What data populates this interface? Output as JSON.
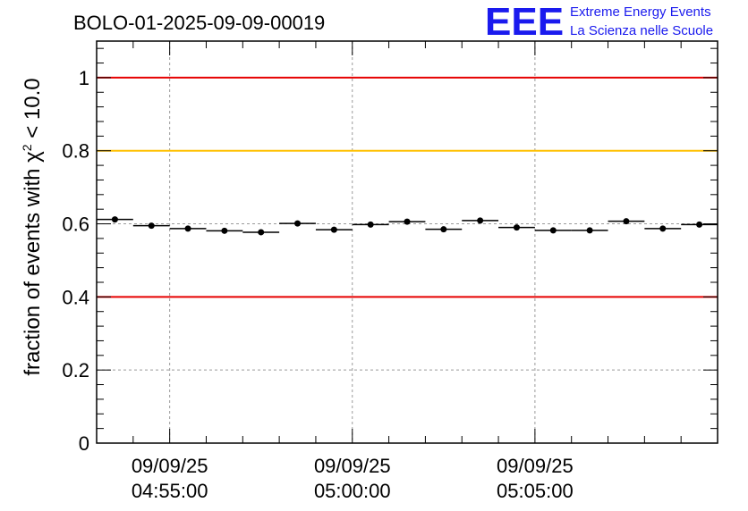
{
  "chart_data": {
    "type": "scatter",
    "title": "BOLO-01-2025-09-09-00019",
    "ylabel": "fraction of events with χ² < 10.0",
    "ylabel_parts": {
      "prefix": "fraction of events with ",
      "chi": "χ",
      "sup": "2",
      "suffix": " < 10.0"
    },
    "xlabel": "",
    "ylim": [
      0,
      1.1
    ],
    "yticks": [
      0,
      0.2,
      0.4,
      0.6,
      0.8,
      1
    ],
    "ytick_labels": [
      "0",
      "0.2",
      "0.4",
      "0.6",
      "0.8",
      "1"
    ],
    "xlim": [
      0,
      17
    ],
    "xticks": [
      {
        "pos": 2,
        "date": "09/09/25",
        "time": "04:55:00"
      },
      {
        "pos": 7,
        "date": "09/09/25",
        "time": "05:00:00"
      },
      {
        "pos": 12,
        "date": "09/09/25",
        "time": "05:05:00"
      }
    ],
    "x_minor_per_major": 5,
    "grid": true,
    "bin_width": 1,
    "series": [
      {
        "name": "fraction",
        "color": "#000000",
        "bins": [
          0,
          1,
          2,
          3,
          4,
          5,
          6,
          7,
          8,
          9,
          10,
          11,
          12,
          13,
          14,
          15,
          16
        ],
        "values": [
          0.612,
          0.595,
          0.587,
          0.581,
          0.577,
          0.601,
          0.584,
          0.598,
          0.606,
          0.585,
          0.609,
          0.59,
          0.582,
          0.582,
          0.607,
          0.587,
          0.598
        ]
      }
    ],
    "reference_lines": [
      {
        "y": 1.0,
        "color": "#e60000"
      },
      {
        "y": 0.8,
        "color": "#ffc000"
      },
      {
        "y": 0.4,
        "color": "#e60000"
      }
    ]
  },
  "logo": {
    "mark": "EEE",
    "line1": "Extreme Energy Events",
    "line2": "La Scienza nelle Scuole",
    "color": "#1a1aee"
  }
}
